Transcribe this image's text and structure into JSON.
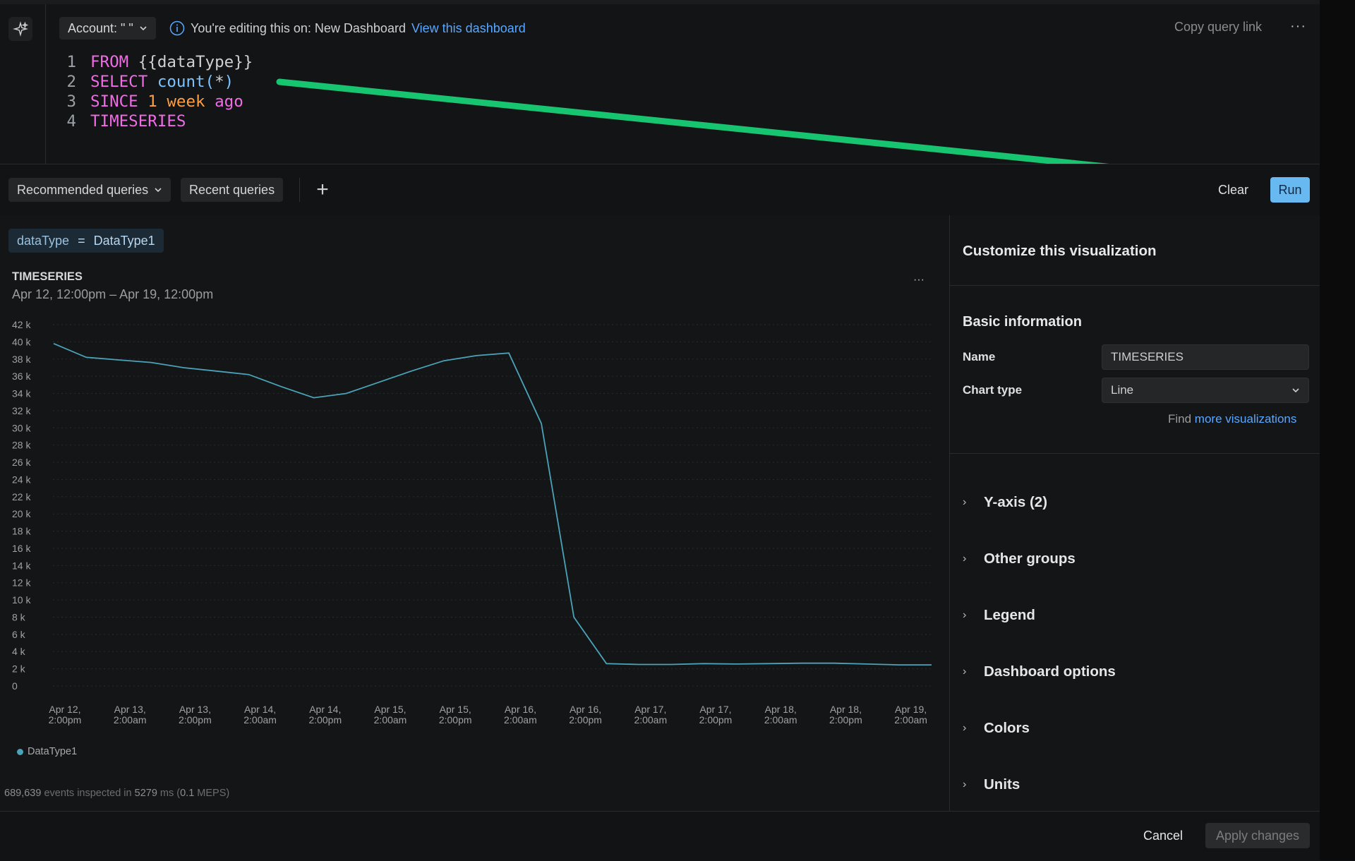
{
  "header": {
    "account_label": "Account: \" \"",
    "editing_text": "You're editing this on: New Dashboard",
    "view_dashboard_link": "View this dashboard",
    "copy_query_link": "Copy query link",
    "more_icon": "···"
  },
  "editor": {
    "lines": [
      {
        "n": "1",
        "parts": [
          {
            "t": "FROM",
            "c": "kw"
          },
          {
            "t": " {{dataType}}",
            "c": "txt"
          }
        ]
      },
      {
        "n": "2",
        "parts": [
          {
            "t": "SELECT",
            "c": "kw"
          },
          {
            "t": " count(",
            "c": "fn"
          },
          {
            "t": "*",
            "c": "txt"
          },
          {
            "t": ")",
            "c": "fn"
          }
        ]
      },
      {
        "n": "3",
        "parts": [
          {
            "t": "SINCE",
            "c": "kw"
          },
          {
            "t": " 1",
            "c": "num"
          },
          {
            "t": " week",
            "c": "num"
          },
          {
            "t": " ago",
            "c": "kw"
          }
        ]
      },
      {
        "n": "4",
        "parts": [
          {
            "t": "TIMESERIES",
            "c": "kw"
          }
        ]
      }
    ]
  },
  "toolbar": {
    "recommended_queries": "Recommended queries",
    "recent_queries": "Recent queries",
    "plus": "+",
    "clear": "Clear",
    "run": "Run"
  },
  "filter": {
    "key": "dataType",
    "op": "=",
    "value": "DataType1"
  },
  "chart_header": {
    "title": "TIMESERIES",
    "subtitle": "Apr 12, 12:00pm – Apr 19, 12:00pm",
    "menu_icon": "···"
  },
  "chart_data": {
    "type": "line",
    "title": "TIMESERIES",
    "subtitle": "Apr 12, 12:00pm – Apr 19, 12:00pm",
    "ylim": [
      0,
      42000
    ],
    "y_ticks": [
      "0",
      "2 k",
      "4 k",
      "6 k",
      "8 k",
      "10 k",
      "12 k",
      "14 k",
      "16 k",
      "18 k",
      "20 k",
      "22 k",
      "24 k",
      "26 k",
      "28 k",
      "30 k",
      "32 k",
      "34 k",
      "36 k",
      "38 k",
      "40 k",
      "42 k"
    ],
    "x_ticks": [
      [
        "Apr 12,",
        "2:00pm"
      ],
      [
        "Apr 13,",
        "2:00am"
      ],
      [
        "Apr 13,",
        "2:00pm"
      ],
      [
        "Apr 14,",
        "2:00am"
      ],
      [
        "Apr 14,",
        "2:00pm"
      ],
      [
        "Apr 15,",
        "2:00am"
      ],
      [
        "Apr 15,",
        "2:00pm"
      ],
      [
        "Apr 16,",
        "2:00am"
      ],
      [
        "Apr 16,",
        "2:00pm"
      ],
      [
        "Apr 17,",
        "2:00am"
      ],
      [
        "Apr 17,",
        "2:00pm"
      ],
      [
        "Apr 18,",
        "2:00am"
      ],
      [
        "Apr 18,",
        "2:00pm"
      ],
      [
        "Apr 19,",
        "2:00am"
      ]
    ],
    "grid": true,
    "legend_position": "bottom-left",
    "series": [
      {
        "name": "DataType1",
        "color": "#4aa3b8",
        "x": [
          "Apr 12, 12:00pm",
          "Apr 12, 6:00pm",
          "Apr 13, 12:00am",
          "Apr 13, 6:00am",
          "Apr 13, 12:00pm",
          "Apr 13, 6:00pm",
          "Apr 14, 12:00am",
          "Apr 14, 6:00am",
          "Apr 14, 12:00pm",
          "Apr 14, 6:00pm",
          "Apr 15, 12:00am",
          "Apr 15, 6:00am",
          "Apr 15, 12:00pm",
          "Apr 15, 6:00pm",
          "Apr 16, 12:00am",
          "Apr 16, 6:00am",
          "Apr 16, 12:00pm",
          "Apr 16, 6:00pm",
          "Apr 17, 12:00am",
          "Apr 17, 6:00am",
          "Apr 17, 12:00pm",
          "Apr 17, 6:00pm",
          "Apr 18, 12:00am",
          "Apr 18, 6:00am",
          "Apr 18, 12:00pm",
          "Apr 18, 6:00pm",
          "Apr 19, 12:00am",
          "Apr 19, 6:00am"
        ],
        "values": [
          39800,
          38200,
          37900,
          37600,
          37000,
          36600,
          36200,
          34800,
          33500,
          34000,
          35300,
          36600,
          37800,
          38400,
          38700,
          30500,
          8000,
          2600,
          2500,
          2500,
          2600,
          2550,
          2600,
          2650,
          2650,
          2550,
          2450,
          2450
        ]
      }
    ]
  },
  "legend": {
    "label": "DataType1",
    "color": "#4aa3b8"
  },
  "stats": {
    "events": "689,639",
    "events_text": " events inspected in ",
    "ms": "5279",
    "ms_text": " ms (",
    "meps": "0.1",
    "meps_text": " MEPS)"
  },
  "panel": {
    "title": "Customize this visualization",
    "basic_info": "Basic information",
    "name_label": "Name",
    "name_value": "TIMESERIES",
    "chart_type_label": "Chart type",
    "chart_type_value": "Line",
    "find_text": "Find ",
    "more_visualizations": "more visualizations",
    "sections": [
      "Y-axis (2)",
      "Other groups",
      "Legend",
      "Dashboard options",
      "Colors",
      "Units"
    ]
  },
  "footer": {
    "cancel": "Cancel",
    "apply": "Apply changes"
  },
  "colors": {
    "accent": "#68b8f2",
    "link": "#5aa7ff",
    "keyword": "#f06ce5",
    "function": "#7cc3ff",
    "number": "#ff9f43",
    "arrow": "#17c46f",
    "series": "#4aa3b8"
  }
}
